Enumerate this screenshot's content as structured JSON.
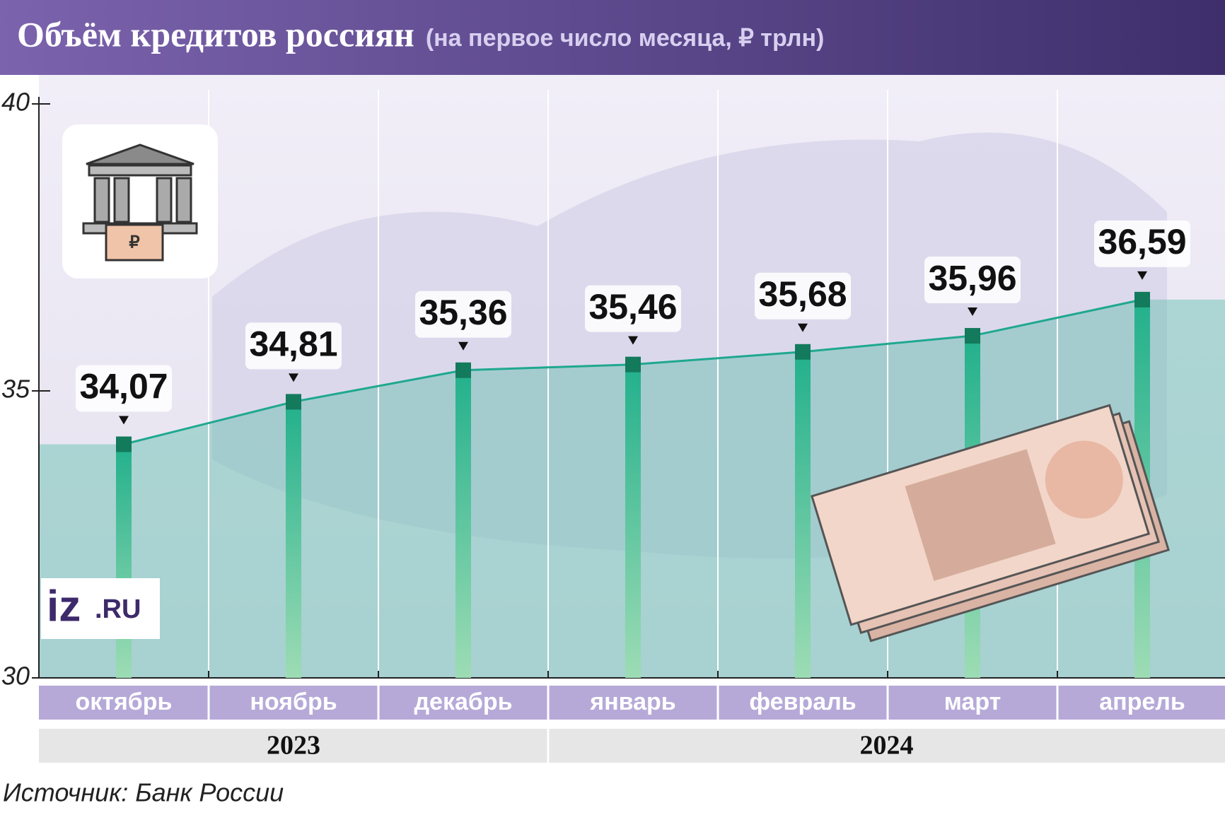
{
  "chart_data": {
    "type": "bar-line",
    "title": "Объём кредитов россиян",
    "subtitle": "(на первое число месяца, ₽ трлн)",
    "categories": [
      "октябрь",
      "ноябрь",
      "декабрь",
      "январь",
      "февраль",
      "март",
      "апрель"
    ],
    "years": [
      "2023",
      "2024"
    ],
    "values": [
      34.07,
      34.81,
      35.36,
      35.46,
      35.68,
      35.96,
      36.59
    ],
    "value_labels": [
      "34,07",
      "34,81",
      "35,36",
      "35,46",
      "35,68",
      "35,96",
      "36,59"
    ],
    "color": "#2fb58f",
    "line_color": "#1fa88f",
    "ylim": [
      30,
      40
    ],
    "yticks": [
      30,
      35,
      40
    ],
    "grid": true,
    "source": "Источник: Банк России",
    "logo": [
      "iz",
      ".RU"
    ]
  }
}
